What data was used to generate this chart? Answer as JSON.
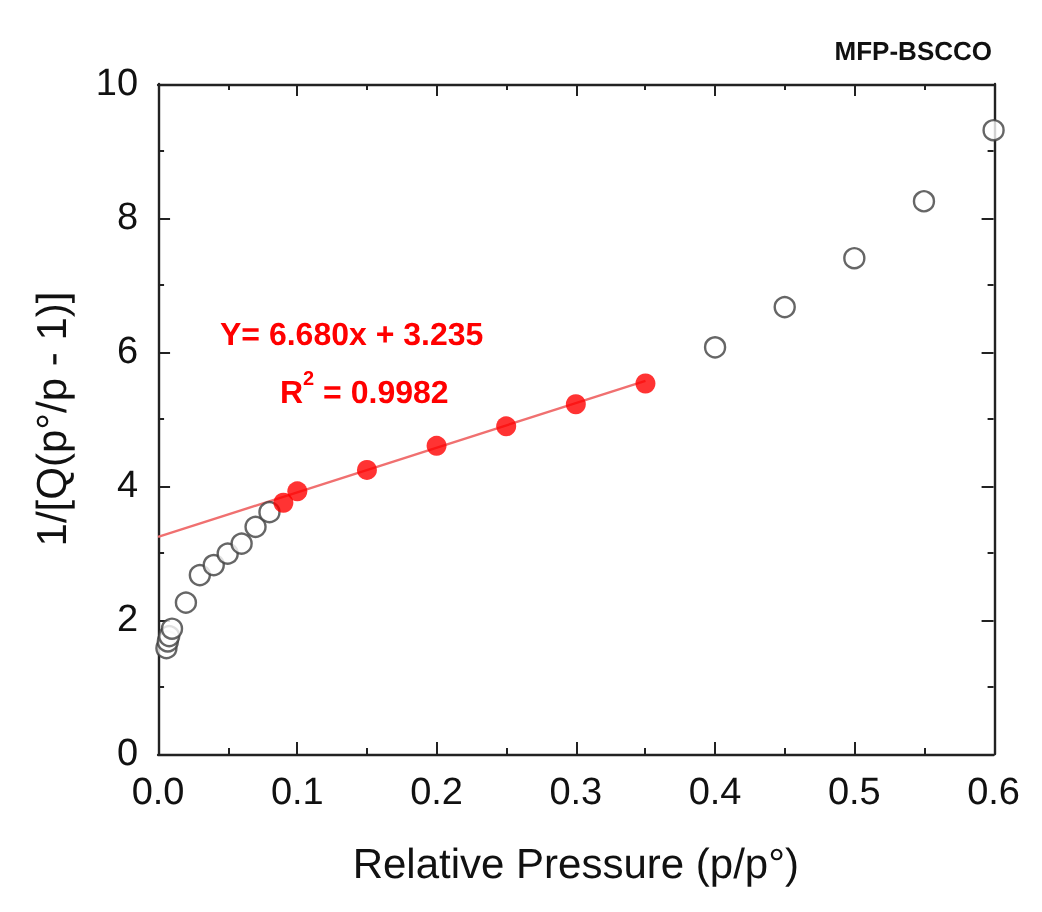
{
  "chart_data": {
    "type": "scatter",
    "title": "MFP-BSCCO",
    "xlabel": "Relative Pressure (p/p°)",
    "ylabel": "1/[Q(p°/p - 1)]",
    "annotations": [
      "Y= 6.680x + 3.235",
      "R$^{2}$ = 0.9982"
    ],
    "series": [
      {
        "type": "scatter",
        "marker": "circle",
        "color": "#404040",
        "x": [
          0.006,
          0.007,
          0.008,
          0.01,
          0.02,
          0.03,
          0.04,
          0.05,
          0.06,
          0.07,
          0.08,
          0.4,
          0.45,
          0.5,
          0.55,
          0.6
        ],
        "values": [
          1.58,
          1.68,
          1.76,
          1.87,
          2.26,
          2.67,
          2.82,
          2.99,
          3.14,
          3.39,
          3.61,
          6.07,
          6.67,
          7.4,
          8.25,
          9.31
        ]
      },
      {
        "type": "scatter",
        "marker": "circle",
        "color": "#ff0000",
        "x": [
          0.09,
          0.1,
          0.15,
          0.2,
          0.25,
          0.3,
          0.35
        ],
        "values": [
          3.75,
          3.92,
          4.24,
          4.6,
          4.89,
          5.22,
          5.53
        ]
      },
      {
        "type": "line",
        "marker": "none",
        "color": "#f07070",
        "x": [
          0,
          0.35
        ],
        "values": [
          3.24,
          5.57
        ]
      }
    ],
    "grid": false,
    "xlim": [
      0,
      0.6
    ],
    "xticks": [
      {
        "value": 0,
        "label": "0.0"
      },
      {
        "value": 0.1,
        "label": "0.1"
      },
      {
        "value": 0.2,
        "label": "0.2"
      },
      {
        "value": 0.3,
        "label": "0.3"
      },
      {
        "value": 0.4,
        "label": "0.4"
      },
      {
        "value": 0.5,
        "label": "0.5"
      },
      {
        "value": 0.6,
        "label": "0.6"
      }
    ],
    "ylim": [
      0,
      10
    ],
    "yticks": [
      0,
      2,
      4,
      6,
      8,
      10
    ]
  }
}
